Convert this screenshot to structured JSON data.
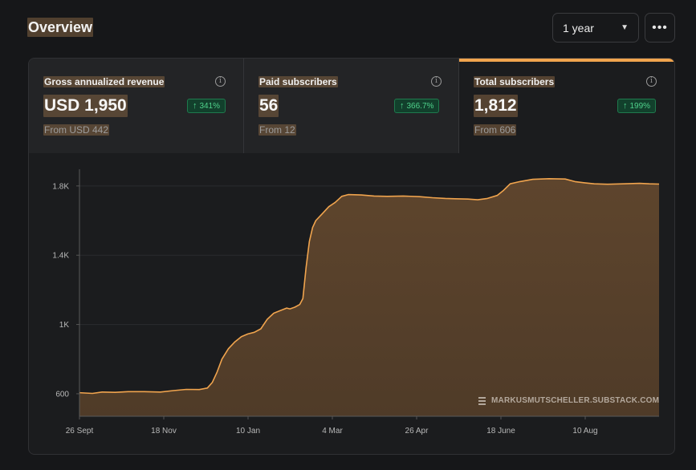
{
  "header": {
    "title": "Overview",
    "period": "1 year",
    "more_label": "•••"
  },
  "metrics": [
    {
      "label": "Gross annualized revenue",
      "value": "USD 1,950",
      "change": "341%",
      "from": "From USD 442",
      "active": false
    },
    {
      "label": "Paid subscribers",
      "value": "56",
      "change": "366.7%",
      "from": "From 12",
      "active": false
    },
    {
      "label": "Total subscribers",
      "value": "1,812",
      "change": "199%",
      "from": "From 606",
      "active": true
    }
  ],
  "watermark": "MARKUSMUTSCHELLER.SUBSTACK.COM",
  "colors": {
    "accent": "#f0a44e",
    "fill": "#5b432c",
    "badge_text": "#4fd18b"
  },
  "chart_data": {
    "type": "area",
    "title": "",
    "xlabel": "",
    "ylabel": "",
    "x_ticks": [
      "26 Sept",
      "18 Nov",
      "10 Jan",
      "4 Mar",
      "26 Apr",
      "18 June",
      "10 Aug"
    ],
    "y_ticks": [
      "600",
      "1K",
      "1.4K",
      "1.8K"
    ],
    "y_tick_values": [
      600,
      1000,
      1400,
      1800
    ],
    "ylim": [
      470,
      1915
    ],
    "grid": true,
    "series": [
      {
        "values": [
          [
            0,
            606
          ],
          [
            8,
            602
          ],
          [
            14,
            610
          ],
          [
            22,
            608
          ],
          [
            30,
            612
          ],
          [
            40,
            612
          ],
          [
            50,
            610
          ],
          [
            58,
            618
          ],
          [
            66,
            625
          ],
          [
            74,
            624
          ],
          [
            79,
            633
          ],
          [
            82,
            665
          ],
          [
            85,
            725
          ],
          [
            88,
            800
          ],
          [
            92,
            860
          ],
          [
            96,
            900
          ],
          [
            100,
            930
          ],
          [
            104,
            945
          ],
          [
            108,
            955
          ],
          [
            112,
            975
          ],
          [
            116,
            1030
          ],
          [
            120,
            1065
          ],
          [
            124,
            1080
          ],
          [
            128,
            1095
          ],
          [
            130,
            1090
          ],
          [
            133,
            1100
          ],
          [
            136,
            1115
          ],
          [
            138,
            1150
          ],
          [
            140,
            1330
          ],
          [
            142,
            1480
          ],
          [
            144,
            1560
          ],
          [
            146,
            1600
          ],
          [
            150,
            1640
          ],
          [
            154,
            1680
          ],
          [
            158,
            1705
          ],
          [
            162,
            1740
          ],
          [
            166,
            1750
          ],
          [
            174,
            1748
          ],
          [
            182,
            1742
          ],
          [
            190,
            1740
          ],
          [
            200,
            1742
          ],
          [
            210,
            1738
          ],
          [
            218,
            1732
          ],
          [
            226,
            1728
          ],
          [
            232,
            1726
          ],
          [
            240,
            1724
          ],
          [
            246,
            1720
          ],
          [
            252,
            1728
          ],
          [
            258,
            1745
          ],
          [
            262,
            1775
          ],
          [
            266,
            1812
          ],
          [
            272,
            1825
          ],
          [
            280,
            1838
          ],
          [
            290,
            1842
          ],
          [
            300,
            1840
          ],
          [
            306,
            1825
          ],
          [
            312,
            1818
          ],
          [
            318,
            1812
          ],
          [
            326,
            1810
          ],
          [
            336,
            1812
          ],
          [
            346,
            1815
          ],
          [
            352,
            1812
          ],
          [
            358,
            1811
          ]
        ]
      }
    ]
  }
}
